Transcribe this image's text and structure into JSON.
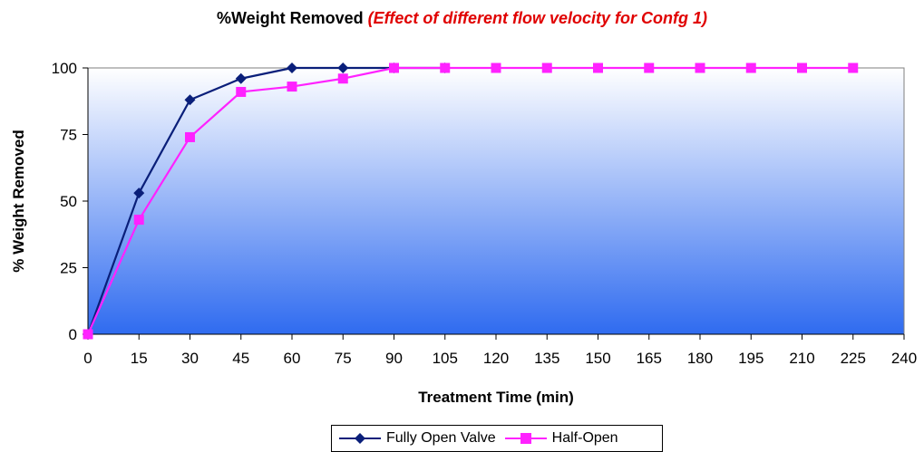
{
  "chart_data": {
    "type": "line",
    "title": "%Weight Removed",
    "subtitle": "(Effect of different flow velocity for Confg 1)",
    "xlabel": "Treatment Time (min)",
    "ylabel": "% Weight Removed",
    "xlim": [
      0,
      240
    ],
    "ylim": [
      0,
      100
    ],
    "x_ticks": [
      "0",
      "15",
      "30",
      "45",
      "60",
      "75",
      "90",
      "105",
      "120",
      "135",
      "150",
      "165",
      "180",
      "195",
      "210",
      "225",
      "240"
    ],
    "y_ticks": [
      "0",
      "25",
      "50",
      "75",
      "100"
    ],
    "grid": false,
    "legend_position": "bottom",
    "series": [
      {
        "name": "Fully Open Valve",
        "color": "#0a1f7a",
        "marker": "diamond",
        "x": [
          0,
          15,
          30,
          45,
          60,
          75,
          90,
          105
        ],
        "y": [
          0,
          53,
          88,
          96,
          100,
          100,
          100,
          100
        ]
      },
      {
        "name": "Half-Open",
        "color": "#ff22ff",
        "marker": "square",
        "x": [
          0,
          15,
          30,
          45,
          60,
          75,
          90,
          105,
          120,
          135,
          150,
          165,
          180,
          195,
          210,
          225
        ],
        "y": [
          0,
          43,
          74,
          91,
          93,
          96,
          100,
          100,
          100,
          100,
          100,
          100,
          100,
          100,
          100,
          100
        ]
      }
    ],
    "plot_background": {
      "top_color": "#ffffff",
      "bottom_color": "#2f6bf0"
    }
  }
}
